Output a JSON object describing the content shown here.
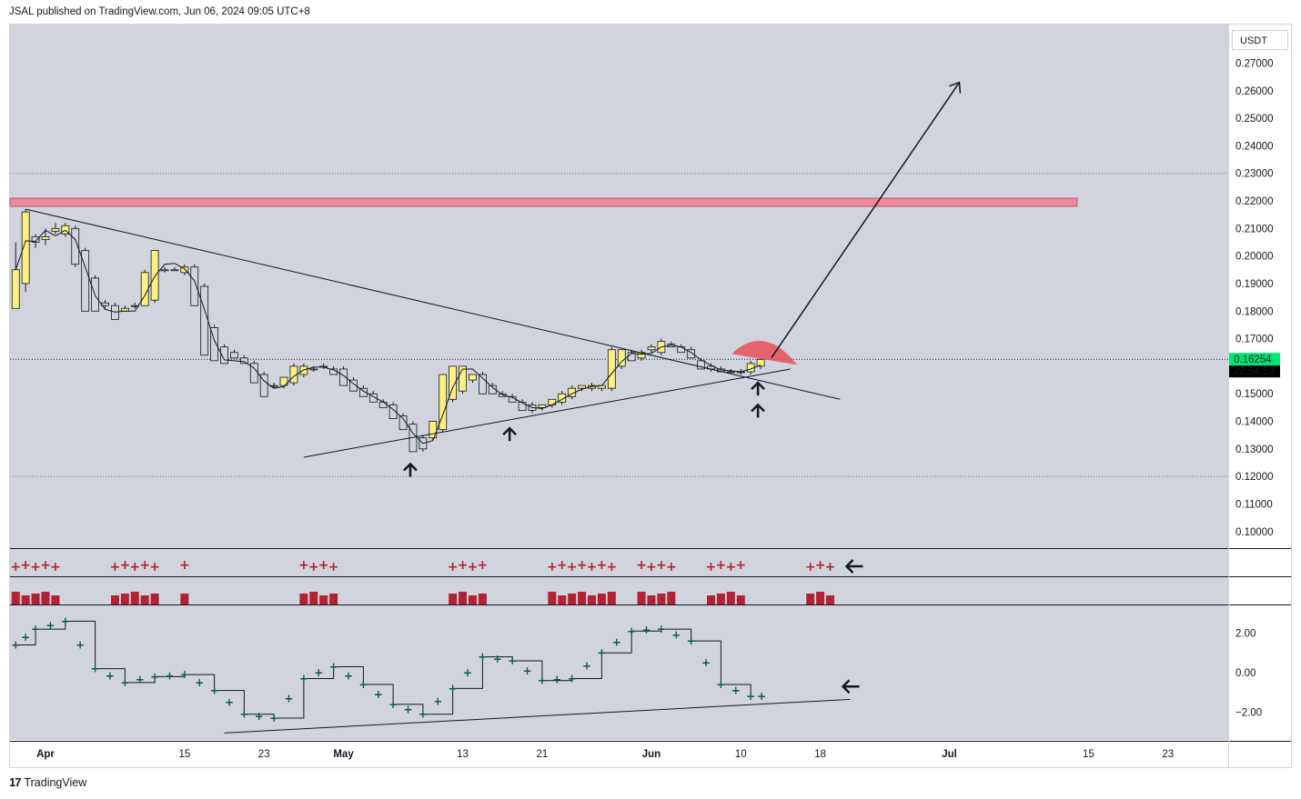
{
  "header": {
    "publish_line": "JSAL published on TradingView.com, Jun 06, 2024 09:05 UTC+8"
  },
  "footer": {
    "brand": "TradingView",
    "logo_icon": "tradingview-logo-icon"
  },
  "currency_label": "USDT",
  "price_axis": {
    "ticks": [
      "0.27000",
      "0.26000",
      "0.25000",
      "0.24000",
      "0.23000",
      "0.22000",
      "0.21000",
      "0.20000",
      "0.19000",
      "0.18000",
      "0.17000",
      "0.16000",
      "0.15000",
      "0.14000",
      "0.13000",
      "0.12000",
      "0.11000",
      "0.10000"
    ],
    "tick_values": [
      0.27,
      0.26,
      0.25,
      0.24,
      0.23,
      0.22,
      0.21,
      0.2,
      0.19,
      0.18,
      0.17,
      0.16,
      0.15,
      0.14,
      0.13,
      0.12,
      0.11,
      0.1
    ],
    "last_price": "0.16254",
    "last_price_value": 0.16254,
    "countdown": "22:54:52",
    "last_price_color": "#00e676"
  },
  "osc_axis": {
    "ticks": [
      "2.00",
      "0.00",
      "−2.00"
    ],
    "tick_values": [
      2,
      0,
      -2
    ]
  },
  "time_axis": {
    "labels": [
      "Apr",
      "15",
      "23",
      "May",
      "13",
      "21",
      "Jun",
      "10",
      "18",
      "Jul",
      "15",
      "23"
    ],
    "bold": [
      true,
      false,
      false,
      true,
      false,
      false,
      true,
      false,
      false,
      true,
      false,
      false
    ],
    "dates": [
      "2024-04-01",
      "2024-04-15",
      "2024-04-23",
      "2024-05-01",
      "2024-05-13",
      "2024-05-21",
      "2024-06-01",
      "2024-06-10",
      "2024-06-18",
      "2024-07-01",
      "2024-07-15",
      "2024-07-23"
    ]
  },
  "colors": {
    "background": "#d1d4dc",
    "bull_candle": "#fdf07f",
    "bear_candle": "#d1d4dc",
    "resistance_zone": "#ea8a9a",
    "red_marker": "#b22234",
    "osc_marker": "#0f5a48"
  },
  "chart_data": [
    {
      "type": "candlestick",
      "title": "",
      "y_unit": "USDT",
      "ylim": [
        0.094,
        0.284
      ],
      "grid": false,
      "x_start": "2024-03-29",
      "x_end": "2024-07-28",
      "ohlc": [
        [
          "2024-03-29",
          0.181,
          0.205,
          0.181,
          0.195
        ],
        [
          "2024-03-30",
          0.19,
          0.217,
          0.187,
          0.216
        ],
        [
          "2024-03-31",
          0.207,
          0.208,
          0.203,
          0.205
        ],
        [
          "2024-04-01",
          0.206,
          0.21,
          0.204,
          0.207
        ],
        [
          "2024-04-02",
          0.209,
          0.212,
          0.208,
          0.21
        ],
        [
          "2024-04-03",
          0.208,
          0.212,
          0.207,
          0.211
        ],
        [
          "2024-04-04",
          0.21,
          0.211,
          0.196,
          0.197
        ],
        [
          "2024-04-05",
          0.202,
          0.203,
          0.18,
          0.18
        ],
        [
          "2024-04-06",
          0.192,
          0.193,
          0.18,
          0.18
        ],
        [
          "2024-04-07",
          0.183,
          0.184,
          0.181,
          0.182
        ],
        [
          "2024-04-08",
          0.182,
          0.183,
          0.177,
          0.177
        ],
        [
          "2024-04-09",
          0.18,
          0.182,
          0.18,
          0.181
        ],
        [
          "2024-04-10",
          0.182,
          0.183,
          0.181,
          0.182
        ],
        [
          "2024-04-11",
          0.182,
          0.195,
          0.182,
          0.194
        ],
        [
          "2024-04-12",
          0.184,
          0.202,
          0.183,
          0.202
        ],
        [
          "2024-04-13",
          0.195,
          0.196,
          0.194,
          0.195
        ],
        [
          "2024-04-14",
          0.195,
          0.196,
          0.195,
          0.195
        ],
        [
          "2024-04-15",
          0.194,
          0.197,
          0.193,
          0.196
        ],
        [
          "2024-04-16",
          0.196,
          0.197,
          0.182,
          0.182
        ],
        [
          "2024-04-17",
          0.189,
          0.19,
          0.164,
          0.164
        ],
        [
          "2024-04-18",
          0.174,
          0.175,
          0.162,
          0.162
        ],
        [
          "2024-04-19",
          0.167,
          0.168,
          0.161,
          0.161
        ],
        [
          "2024-04-20",
          0.165,
          0.166,
          0.163,
          0.163
        ],
        [
          "2024-04-21",
          0.163,
          0.164,
          0.161,
          0.161
        ],
        [
          "2024-04-22",
          0.161,
          0.162,
          0.154,
          0.154
        ],
        [
          "2024-04-23",
          0.157,
          0.158,
          0.149,
          0.149
        ],
        [
          "2024-04-24",
          0.153,
          0.154,
          0.152,
          0.153
        ],
        [
          "2024-04-25",
          0.153,
          0.156,
          0.152,
          0.156
        ],
        [
          "2024-04-26",
          0.154,
          0.161,
          0.153,
          0.16
        ],
        [
          "2024-04-27",
          0.157,
          0.161,
          0.156,
          0.16
        ],
        [
          "2024-04-28",
          0.159,
          0.16,
          0.158,
          0.159
        ],
        [
          "2024-04-29",
          0.16,
          0.161,
          0.159,
          0.16
        ],
        [
          "2024-04-30",
          0.159,
          0.16,
          0.157,
          0.157
        ],
        [
          "2024-05-01",
          0.159,
          0.16,
          0.153,
          0.153
        ],
        [
          "2024-05-02",
          0.155,
          0.156,
          0.151,
          0.151
        ],
        [
          "2024-05-03",
          0.152,
          0.153,
          0.149,
          0.149
        ],
        [
          "2024-05-04",
          0.15,
          0.151,
          0.147,
          0.147
        ],
        [
          "2024-05-05",
          0.147,
          0.148,
          0.145,
          0.145
        ],
        [
          "2024-05-06",
          0.146,
          0.147,
          0.141,
          0.141
        ],
        [
          "2024-05-07",
          0.142,
          0.143,
          0.137,
          0.137
        ],
        [
          "2024-05-08",
          0.139,
          0.14,
          0.129,
          0.129
        ],
        [
          "2024-05-09",
          0.134,
          0.135,
          0.129,
          0.13
        ],
        [
          "2024-05-10",
          0.134,
          0.14,
          0.133,
          0.14
        ],
        [
          "2024-05-11",
          0.137,
          0.157,
          0.136,
          0.157
        ],
        [
          "2024-05-12",
          0.148,
          0.16,
          0.147,
          0.16
        ],
        [
          "2024-05-13",
          0.151,
          0.16,
          0.15,
          0.16
        ],
        [
          "2024-05-14",
          0.155,
          0.157,
          0.154,
          0.157
        ],
        [
          "2024-05-15",
          0.157,
          0.158,
          0.15,
          0.15
        ],
        [
          "2024-05-16",
          0.153,
          0.154,
          0.15,
          0.15
        ],
        [
          "2024-05-17",
          0.15,
          0.151,
          0.149,
          0.149
        ],
        [
          "2024-05-18",
          0.149,
          0.15,
          0.147,
          0.147
        ],
        [
          "2024-05-19",
          0.147,
          0.148,
          0.144,
          0.144
        ],
        [
          "2024-05-20",
          0.146,
          0.147,
          0.143,
          0.144
        ],
        [
          "2024-05-21",
          0.145,
          0.146,
          0.144,
          0.146
        ],
        [
          "2024-05-22",
          0.146,
          0.148,
          0.145,
          0.148
        ],
        [
          "2024-05-23",
          0.147,
          0.151,
          0.146,
          0.15
        ],
        [
          "2024-05-24",
          0.149,
          0.153,
          0.148,
          0.152
        ],
        [
          "2024-05-25",
          0.152,
          0.153,
          0.151,
          0.153
        ],
        [
          "2024-05-26",
          0.152,
          0.154,
          0.151,
          0.153
        ],
        [
          "2024-05-27",
          0.152,
          0.153,
          0.151,
          0.153
        ],
        [
          "2024-05-28",
          0.152,
          0.167,
          0.151,
          0.166
        ],
        [
          "2024-05-29",
          0.16,
          0.166,
          0.159,
          0.166
        ],
        [
          "2024-05-30",
          0.165,
          0.166,
          0.162,
          0.162
        ],
        [
          "2024-05-31",
          0.163,
          0.166,
          0.162,
          0.165
        ],
        [
          "2024-06-01",
          0.166,
          0.168,
          0.165,
          0.167
        ],
        [
          "2024-06-02",
          0.165,
          0.17,
          0.164,
          0.169
        ],
        [
          "2024-06-03",
          0.168,
          0.169,
          0.167,
          0.167
        ],
        [
          "2024-06-04",
          0.167,
          0.168,
          0.165,
          0.165
        ],
        [
          "2024-06-05",
          0.166,
          0.167,
          0.163,
          0.163
        ],
        [
          "2024-06-06",
          0.162,
          0.163,
          0.159,
          0.159
        ],
        [
          "2024-06-07",
          0.16,
          0.161,
          0.158,
          0.159
        ],
        [
          "2024-06-08",
          0.159,
          0.16,
          0.158,
          0.158
        ],
        [
          "2024-06-09",
          0.158,
          0.159,
          0.158,
          0.158
        ],
        [
          "2024-06-10",
          0.158,
          0.159,
          0.157,
          0.158
        ],
        [
          "2024-06-11",
          0.158,
          0.162,
          0.157,
          0.161
        ],
        [
          "2024-06-12",
          0.16,
          0.163,
          0.159,
          0.1625
        ]
      ],
      "annotations": [
        "descending trendline",
        "ascending trendline",
        "resistance zone 0.218-0.221",
        "projection arrow",
        "support arrows"
      ]
    },
    {
      "type": "scatter",
      "title": "",
      "ylim": [
        -3.4,
        3.4
      ],
      "x": [
        "2024-03-29",
        "2024-03-31",
        "2024-04-03",
        "2024-04-06",
        "2024-04-09",
        "2024-04-12",
        "2024-04-15",
        "2024-04-18",
        "2024-04-21",
        "2024-04-24",
        "2024-04-27",
        "2024-04-30",
        "2024-05-03",
        "2024-05-06",
        "2024-05-09",
        "2024-05-12",
        "2024-05-15",
        "2024-05-18",
        "2024-05-21",
        "2024-05-24",
        "2024-05-27",
        "2024-05-30",
        "2024-06-02",
        "2024-06-05",
        "2024-06-08",
        "2024-06-11"
      ],
      "values": [
        1.4,
        2.2,
        2.6,
        0.2,
        -0.5,
        -0.2,
        -0.1,
        -0.9,
        -2.1,
        -2.3,
        -0.3,
        0.3,
        -0.6,
        -1.6,
        -2.1,
        -0.8,
        0.8,
        0.6,
        -0.4,
        -0.3,
        1.0,
        2.1,
        2.2,
        1.6,
        -0.6,
        -1.2
      ]
    }
  ]
}
